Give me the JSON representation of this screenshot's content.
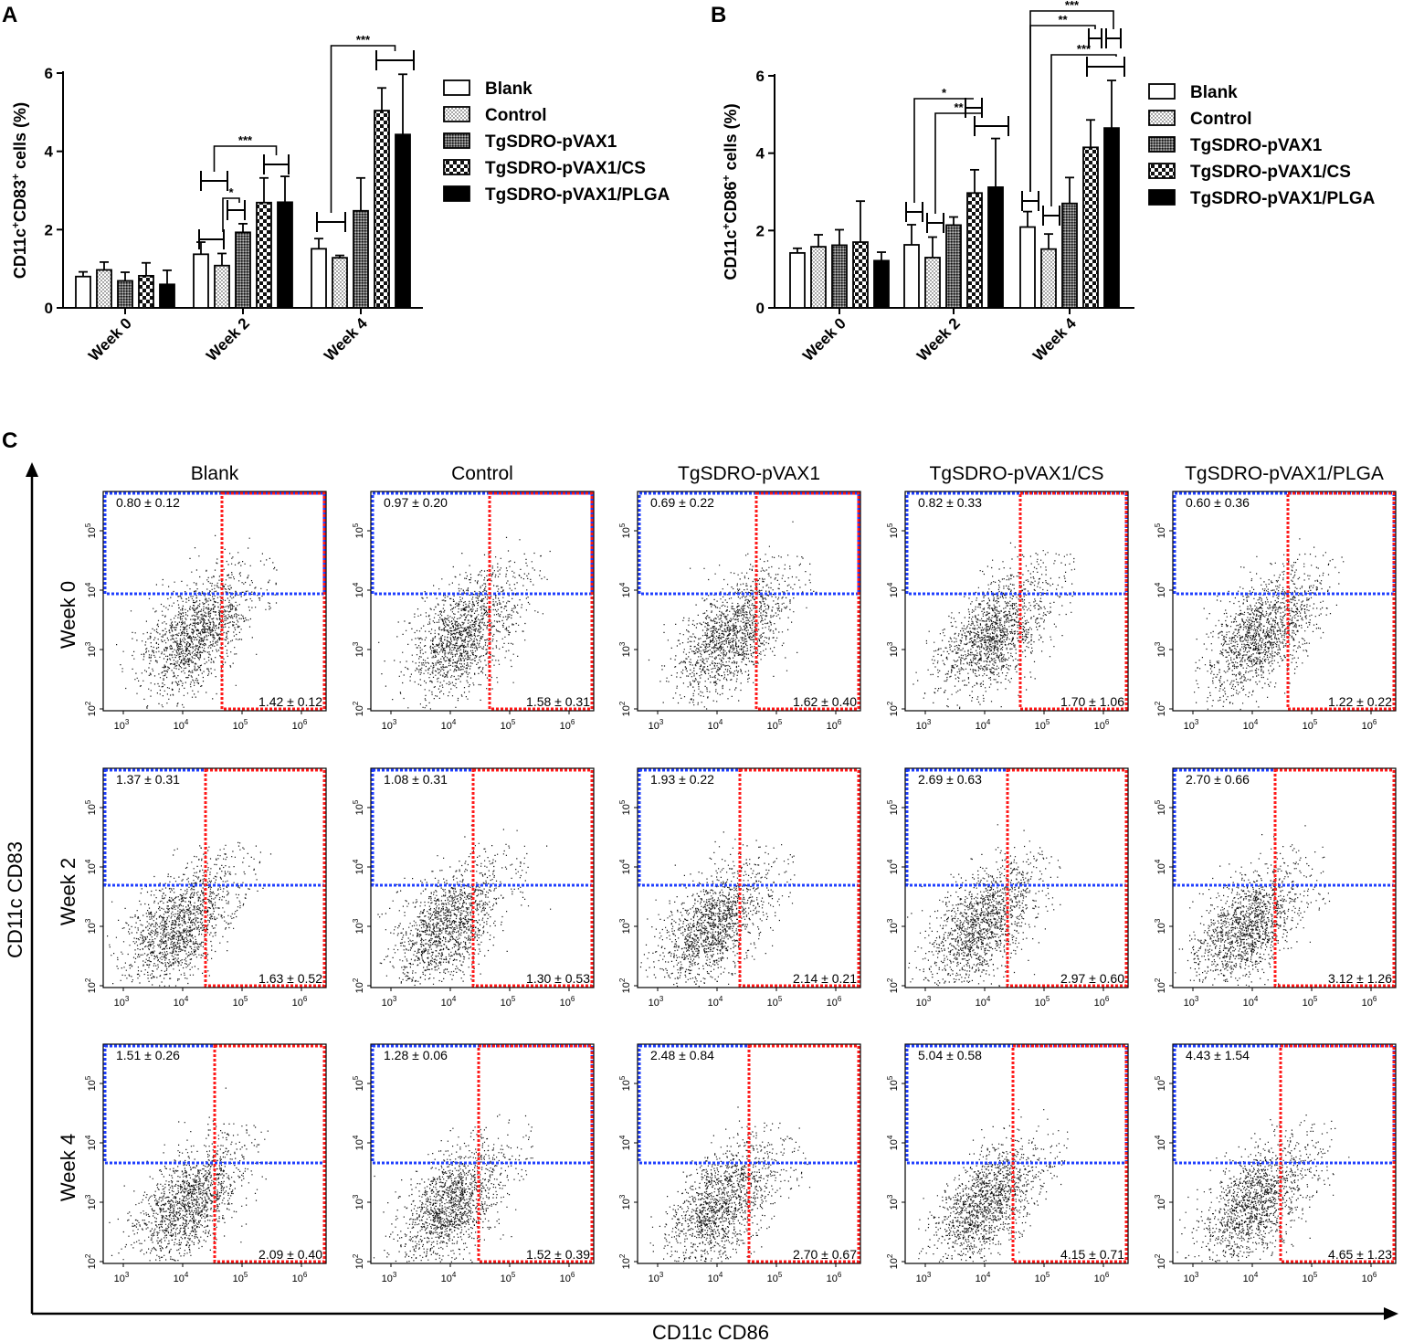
{
  "chart_data": [
    {
      "type": "bar",
      "panel_label": "A",
      "ylabel_parts": [
        "CD11c",
        "+",
        "CD83",
        "+",
        " cells (%)"
      ],
      "ylim": [
        0,
        6
      ],
      "yticks": [
        "0",
        "2",
        "4",
        "6"
      ],
      "categories": [
        "Week 0",
        "Week 2",
        "Week 4"
      ],
      "series": [
        {
          "name": "Blank",
          "values": [
            0.8,
            1.37,
            1.51
          ],
          "errors": [
            0.12,
            0.31,
            0.26
          ]
        },
        {
          "name": "Control",
          "values": [
            0.97,
            1.08,
            1.28
          ],
          "errors": [
            0.2,
            0.31,
            0.06
          ]
        },
        {
          "name": "TgSDRO-pVAX1",
          "values": [
            0.69,
            1.93,
            2.48
          ],
          "errors": [
            0.22,
            0.22,
            0.84
          ]
        },
        {
          "name": "TgSDRO-pVAX1/CS",
          "values": [
            0.82,
            2.69,
            5.04
          ],
          "errors": [
            0.33,
            0.63,
            0.58
          ]
        },
        {
          "name": "TgSDRO-pVAX1/PLGA",
          "values": [
            0.6,
            2.7,
            4.43
          ],
          "errors": [
            0.36,
            0.66,
            1.54
          ]
        }
      ],
      "significance": [
        {
          "category": "Week 2",
          "label": "***"
        },
        {
          "category": "Week 2",
          "label": "*"
        },
        {
          "category": "Week 4",
          "label": "***"
        }
      ]
    },
    {
      "type": "bar",
      "panel_label": "B",
      "ylabel_parts": [
        "CD11c",
        "+",
        "CD86",
        "+",
        " cells (%)"
      ],
      "ylim": [
        0,
        6
      ],
      "yticks": [
        "0",
        "2",
        "4",
        "6"
      ],
      "categories": [
        "Week 0",
        "Week 2",
        "Week 4"
      ],
      "series": [
        {
          "name": "Blank",
          "values": [
            1.42,
            1.63,
            2.09
          ],
          "errors": [
            0.12,
            0.52,
            0.4
          ]
        },
        {
          "name": "Control",
          "values": [
            1.58,
            1.3,
            1.52
          ],
          "errors": [
            0.31,
            0.53,
            0.39
          ]
        },
        {
          "name": "TgSDRO-pVAX1",
          "values": [
            1.62,
            2.14,
            2.7
          ],
          "errors": [
            0.4,
            0.21,
            0.67
          ]
        },
        {
          "name": "TgSDRO-pVAX1/CS",
          "values": [
            1.7,
            2.97,
            4.15
          ],
          "errors": [
            1.06,
            0.6,
            0.71
          ]
        },
        {
          "name": "TgSDRO-pVAX1/PLGA",
          "values": [
            1.22,
            3.12,
            4.65
          ],
          "errors": [
            0.22,
            1.26,
            1.23
          ]
        }
      ],
      "significance": [
        {
          "category": "Week 2",
          "label": "*"
        },
        {
          "category": "Week 2",
          "label": "**"
        },
        {
          "category": "Week 4",
          "label": "***"
        },
        {
          "category": "Week 4",
          "label": "**"
        },
        {
          "category": "Week 4",
          "label": "***"
        }
      ]
    },
    {
      "type": "scatter",
      "panel_label": "C",
      "xlabel": "CD11c CD86",
      "ylabel": "CD11c CD83",
      "columns": [
        "Blank",
        "Control",
        "TgSDRO-pVAX1",
        "TgSDRO-pVAX1/CS",
        "TgSDRO-pVAX1/PLGA"
      ],
      "rows": [
        "Week 0",
        "Week 2",
        "Week 4"
      ],
      "x_ticks": [
        {
          "base": "10",
          "exp": "3"
        },
        {
          "base": "10",
          "exp": "4"
        },
        {
          "base": "10",
          "exp": "5"
        },
        {
          "base": "10",
          "exp": "6"
        }
      ],
      "y_ticks": [
        {
          "base": "10",
          "exp": "2"
        },
        {
          "base": "10",
          "exp": "3"
        },
        {
          "base": "10",
          "exp": "4"
        },
        {
          "base": "10",
          "exp": "5"
        }
      ],
      "upper_left_values": [
        [
          "0.80 ± 0.12",
          "0.97 ± 0.20",
          "0.69 ± 0.22",
          "0.82 ± 0.33",
          "0.60 ± 0.36"
        ],
        [
          "1.37 ± 0.31",
          "1.08 ± 0.31",
          "1.93 ± 0.22",
          "2.69 ± 0.63",
          "2.70 ± 0.66"
        ],
        [
          "1.51 ± 0.26",
          "1.28 ± 0.06",
          "2.48 ± 0.84",
          "5.04 ± 0.58",
          "4.43 ± 1.54"
        ]
      ],
      "lower_right_values": [
        [
          "1.42 ± 0.12",
          "1.58 ± 0.31",
          "1.62 ± 0.40",
          "1.70 ± 1.06",
          "1.22 ± 0.22"
        ],
        [
          "1.63 ± 0.52",
          "1.30 ± 0.53",
          "2.14 ± 0.21",
          "2.97 ± 0.60",
          "3.12 ± 1.26"
        ],
        [
          "2.09 ± 0.40",
          "1.52 ± 0.39",
          "2.70 ± 0.67",
          "4.15 ± 0.71",
          "4.65 ± 1.23"
        ]
      ],
      "gate_colors": {
        "cd83_gate": "#1f3fff",
        "cd86_gate": "#ff1a1a"
      }
    }
  ]
}
